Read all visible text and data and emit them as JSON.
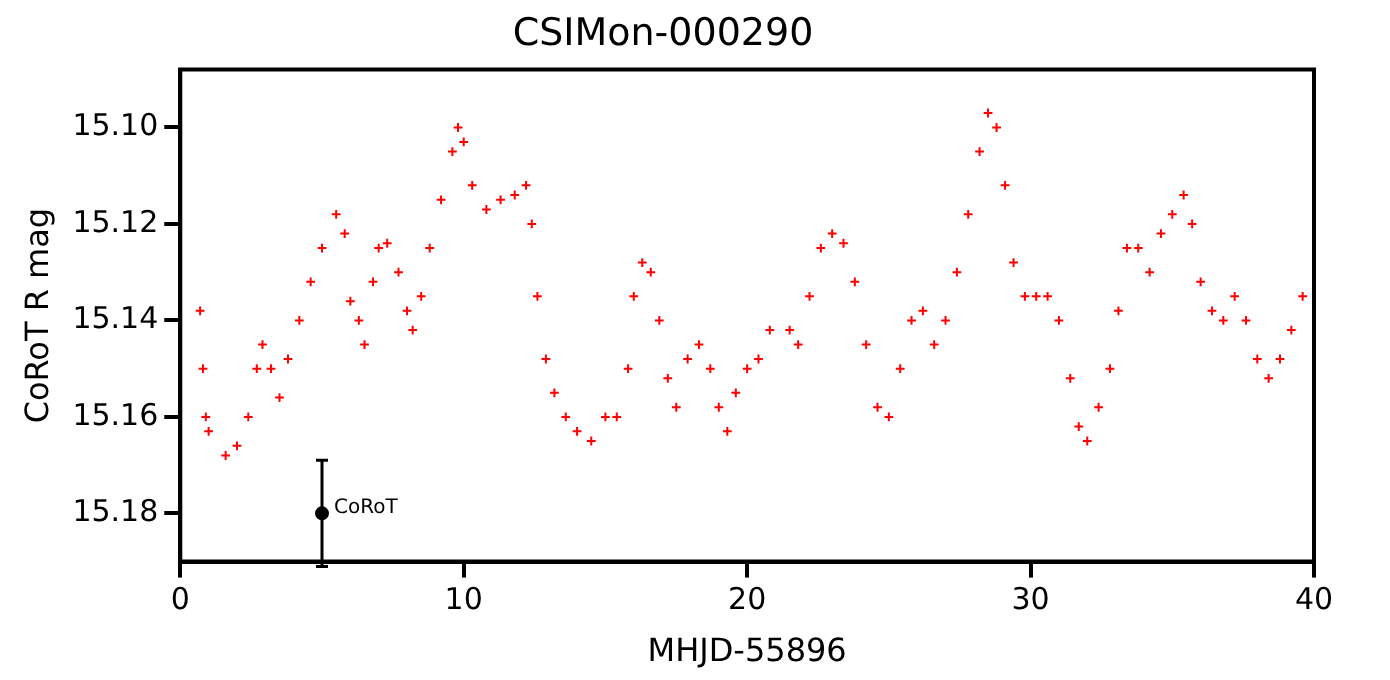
{
  "chart_data": {
    "type": "scatter",
    "title": "CSIMon-000290",
    "xlabel": "MHJD-55896",
    "ylabel": "CoRoT R mag",
    "marker": "cross",
    "grid": false,
    "legend": false,
    "xlim": [
      0,
      40
    ],
    "xticks": [
      0,
      10,
      20,
      30,
      40
    ],
    "ylim": [
      15.19,
      15.088
    ],
    "yticks": [
      {
        "value": 15.1,
        "label": "15.10"
      },
      {
        "value": 15.12,
        "label": "15.12"
      },
      {
        "value": 15.14,
        "label": "15.14"
      },
      {
        "value": 15.16,
        "label": "15.16"
      },
      {
        "value": 15.18,
        "label": "15.18"
      }
    ],
    "annotations": [
      {
        "text": "CoRoT",
        "x": 5,
        "y": 15.18
      }
    ],
    "series": [
      {
        "color": "#ff0000",
        "x": [
          0.7,
          0.8,
          0.9,
          1.0,
          1.6,
          2.0,
          2.4,
          2.7,
          2.9,
          3.2,
          3.5,
          3.8,
          4.2,
          4.6,
          5.0,
          5.5,
          5.8,
          6.0,
          6.3,
          6.5,
          6.8,
          7.0,
          7.3,
          7.7,
          8.0,
          8.2,
          8.5,
          8.8,
          9.2,
          9.6,
          9.8,
          10.0,
          10.3,
          10.8,
          11.3,
          11.8,
          12.2,
          12.4,
          12.6,
          12.9,
          13.2,
          13.6,
          14.0,
          14.5,
          15.0,
          15.4,
          15.8,
          16.0,
          16.3,
          16.6,
          16.9,
          17.2,
          17.5,
          17.9,
          18.3,
          18.7,
          19.0,
          19.3,
          19.6,
          20.0,
          20.4,
          20.8,
          21.5,
          21.8,
          22.2,
          22.6,
          23.0,
          23.4,
          23.8,
          24.2,
          24.6,
          25.0,
          25.4,
          25.8,
          26.2,
          26.6,
          27.0,
          27.4,
          27.8,
          28.2,
          28.5,
          28.8,
          29.1,
          29.4,
          29.8,
          30.2,
          30.6,
          31.0,
          31.4,
          31.7,
          32.0,
          32.4,
          32.8,
          33.1,
          33.4,
          33.8,
          34.2,
          34.6,
          35.0,
          35.4,
          35.7,
          36.0,
          36.4,
          36.8,
          37.2,
          37.6,
          38.0,
          38.4,
          38.8,
          39.2,
          39.6
        ],
        "values": [
          15.138,
          15.15,
          15.16,
          15.163,
          15.168,
          15.166,
          15.16,
          15.15,
          15.145,
          15.15,
          15.156,
          15.148,
          15.14,
          15.132,
          15.125,
          15.118,
          15.122,
          15.136,
          15.14,
          15.145,
          15.132,
          15.125,
          15.124,
          15.13,
          15.138,
          15.142,
          15.135,
          15.125,
          15.115,
          15.105,
          15.1,
          15.103,
          15.112,
          15.117,
          15.115,
          15.114,
          15.112,
          15.12,
          15.135,
          15.148,
          15.155,
          15.16,
          15.163,
          15.165,
          15.16,
          15.16,
          15.15,
          15.135,
          15.128,
          15.13,
          15.14,
          15.152,
          15.158,
          15.148,
          15.145,
          15.15,
          15.158,
          15.163,
          15.155,
          15.15,
          15.148,
          15.142,
          15.142,
          15.145,
          15.135,
          15.125,
          15.122,
          15.124,
          15.132,
          15.145,
          15.158,
          15.16,
          15.15,
          15.14,
          15.138,
          15.145,
          15.14,
          15.13,
          15.118,
          15.105,
          15.097,
          15.1,
          15.112,
          15.128,
          15.135,
          15.135,
          15.135,
          15.14,
          15.152,
          15.162,
          15.165,
          15.158,
          15.15,
          15.138,
          15.125,
          15.125,
          15.13,
          15.122,
          15.118,
          15.114,
          15.12,
          15.132,
          15.138,
          15.14,
          15.135,
          15.14,
          15.148,
          15.152,
          15.148,
          15.142,
          15.135
        ]
      },
      {
        "color": "#000000",
        "marker": "circle",
        "x": [
          5
        ],
        "values": [
          15.18
        ],
        "errors": [
          0.011
        ]
      }
    ]
  }
}
